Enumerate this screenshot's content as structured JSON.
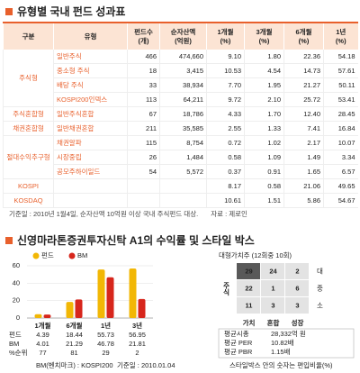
{
  "header": {
    "title": "유형별 국내 펀드 성과표"
  },
  "table": {
    "columns": [
      "구분",
      "유형",
      "펀드수\n(개)",
      "순자산액\n(억원)",
      "1개월\n(%)",
      "3개월\n(%)",
      "6개월\n(%)",
      "1년\n(%)"
    ],
    "groups": [
      {
        "name": "주식형",
        "rows": [
          [
            "일반주식",
            "466",
            "474,660",
            "9.10",
            "1.80",
            "22.36",
            "54.18"
          ],
          [
            "중소형 주식",
            "18",
            "3,415",
            "10.53",
            "4.54",
            "14.73",
            "57.61"
          ],
          [
            "배당 주식",
            "33",
            "38,934",
            "7.70",
            "1.95",
            "21.27",
            "50.11"
          ],
          [
            "KOSPI200인덱스",
            "113",
            "64,211",
            "9.72",
            "2.10",
            "25.72",
            "53.41"
          ]
        ]
      },
      {
        "name": "주식혼합형",
        "rows": [
          [
            "일반주식혼합",
            "67",
            "18,786",
            "4.33",
            "1.70",
            "12.40",
            "28.45"
          ]
        ]
      },
      {
        "name": "채권혼합형",
        "rows": [
          [
            "일반채권혼합",
            "211",
            "35,585",
            "2.55",
            "1.33",
            "7.41",
            "16.84"
          ]
        ]
      },
      {
        "name": "절대수익추구형",
        "rows": [
          [
            "채권알파",
            "115",
            "8,754",
            "0.72",
            "1.02",
            "2.17",
            "10.07"
          ],
          [
            "시장중립",
            "26",
            "1,484",
            "0.58",
            "1.09",
            "1.49",
            "3.34"
          ],
          [
            "공모주하이일드",
            "54",
            "5,572",
            "0.37",
            "0.91",
            "1.65",
            "6.57"
          ]
        ]
      },
      {
        "name": "KOSPI",
        "rows": [
          [
            null,
            null,
            null,
            "8.17",
            "0.58",
            "21.06",
            "49.65"
          ]
        ]
      },
      {
        "name": "KOSDAQ",
        "rows": [
          [
            null,
            null,
            null,
            "10.61",
            "1.51",
            "5.86",
            "54.67"
          ]
        ]
      }
    ],
    "footnote": "기준일 : 2010년 1월4일, 순자산액 10억원 이상 국내 주식펀드 대상.",
    "source": "자료 : 제로인"
  },
  "fund": {
    "title": "신영마라톤증권투자신탁 A1의 수익률 및 스타일 박스",
    "chart": {
      "type": "bar",
      "categories": [
        "1개월",
        "6개월",
        "1년",
        "3년"
      ],
      "series": [
        {
          "name": "펀드",
          "color": "#f2b705",
          "values": [
            4.39,
            18.44,
            55.73,
            56.95
          ]
        },
        {
          "name": "BM",
          "color": "#d7261c",
          "values": [
            4.01,
            21.29,
            46.78,
            21.81
          ]
        }
      ],
      "ylim": [
        0,
        60
      ],
      "yticks": [
        0,
        20,
        40,
        60
      ],
      "rank_label": "%순위",
      "ranks": [
        77,
        81,
        29,
        2
      ]
    },
    "chart_note": "BM(벤치마크) : KOSPI200",
    "date_note": "기준일 : 2010.01.04",
    "style_box": {
      "title": "대형가치주 (12회중 10회)",
      "side_label": "주식",
      "sizes": [
        "대",
        "중",
        "소"
      ],
      "cells": [
        [
          29,
          24,
          2
        ],
        [
          22,
          1,
          6
        ],
        [
          11,
          3,
          3
        ]
      ],
      "highlight": [
        0,
        0
      ],
      "styles": [
        "가치",
        "혼합",
        "성장"
      ],
      "stats": [
        [
          "평균시총",
          "28,332억 원"
        ],
        [
          "평균 PER",
          "10.82배"
        ],
        [
          "평균 PBR",
          "1.15배"
        ]
      ],
      "note": "스타일박스 안의 숫자는 편입비율(%)"
    }
  }
}
